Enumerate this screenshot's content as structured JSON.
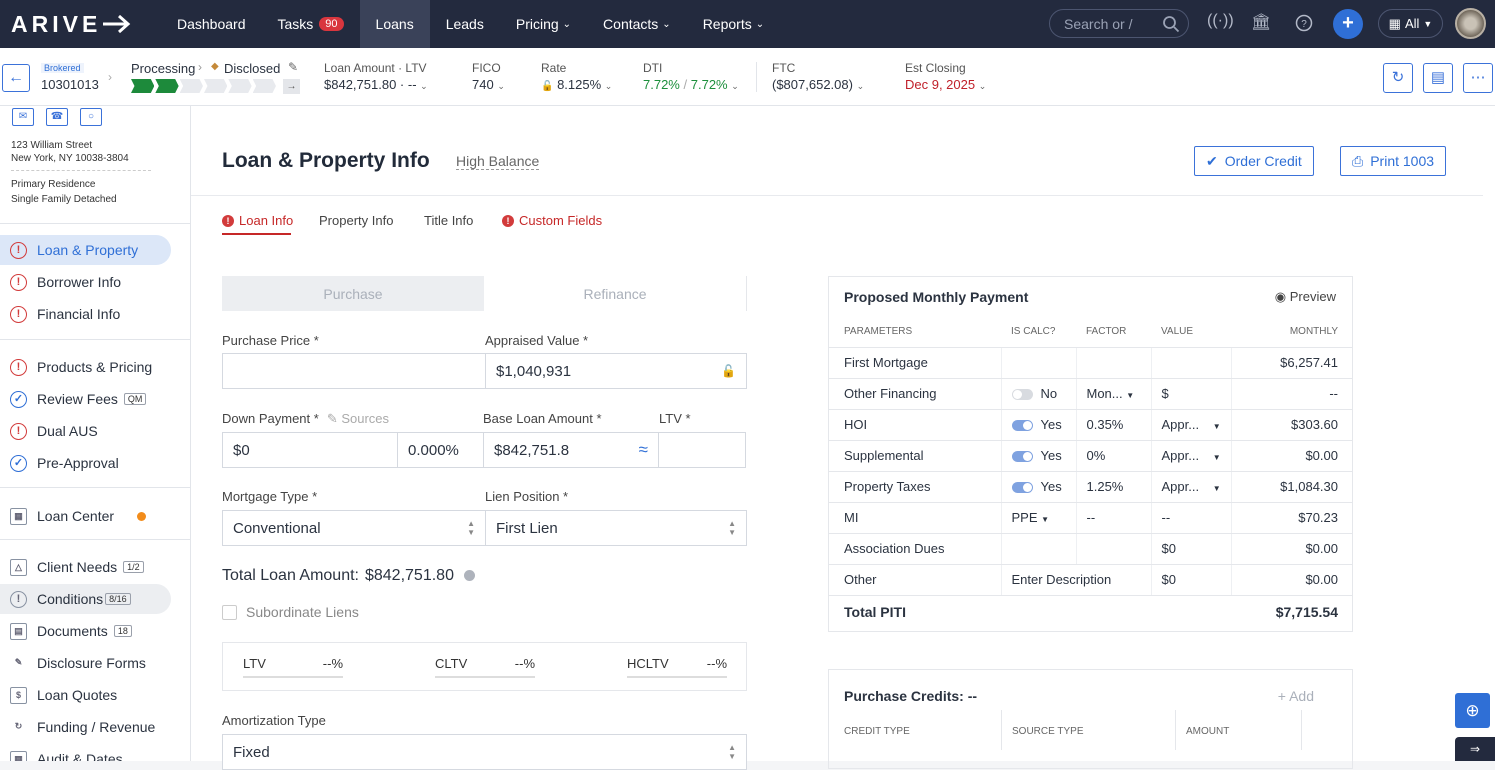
{
  "nav": {
    "logo": "ARIVE",
    "items": [
      {
        "label": "Dashboard"
      },
      {
        "label": "Tasks",
        "badge": "90"
      },
      {
        "label": "Loans"
      },
      {
        "label": "Leads"
      },
      {
        "label": "Pricing"
      },
      {
        "label": "Contacts"
      },
      {
        "label": "Reports"
      }
    ],
    "search_placeholder": "Search or /",
    "scope": "All"
  },
  "loanbar": {
    "channel": "Brokered",
    "loan_number": "10301013",
    "stage": "Processing",
    "status": "Disclosed",
    "loan_amount_label": "Loan Amount",
    "ltv_label": "LTV",
    "loan_amount": "$842,751.80",
    "ltv_value": "--",
    "fico_label": "FICO",
    "fico": "740",
    "rate_label": "Rate",
    "rate": "8.125%",
    "dti_label": "DTI",
    "dti_front": "7.72%",
    "dti_back": "7.72%",
    "ftc_label": "FTC",
    "ftc": "($807,652.08)",
    "closing_label": "Est Closing",
    "closing": "Dec 9, 2025"
  },
  "sidebar": {
    "address1": "123 William Street",
    "address2": "New York, NY 10038-3804",
    "occupancy": "Primary Residence",
    "property_type": "Single Family Detached",
    "items": [
      {
        "label": "Loan & Property"
      },
      {
        "label": "Borrower Info"
      },
      {
        "label": "Financial Info"
      },
      {
        "label": "Products & Pricing"
      },
      {
        "label": "Review Fees",
        "badge": "QM"
      },
      {
        "label": "Dual AUS"
      },
      {
        "label": "Pre-Approval"
      },
      {
        "label": "Loan Center"
      },
      {
        "label": "Client Needs",
        "badge": "1/2"
      },
      {
        "label": "Conditions",
        "badge": "8/16"
      },
      {
        "label": "Documents",
        "badge": "18"
      },
      {
        "label": "Disclosure Forms"
      },
      {
        "label": "Loan Quotes"
      },
      {
        "label": "Funding / Revenue"
      },
      {
        "label": "Audit & Dates"
      }
    ]
  },
  "main": {
    "title": "Loan & Property Info",
    "subtitle": "High Balance",
    "order_credit": "Order Credit",
    "print_1003": "Print 1003",
    "tabs": [
      {
        "label": "Loan Info"
      },
      {
        "label": "Property Info"
      },
      {
        "label": "Title Info"
      },
      {
        "label": "Custom Fields"
      }
    ],
    "purpose": {
      "purchase": "Purchase",
      "refinance": "Refinance"
    },
    "purchase_price_label": "Purchase Price *",
    "purchase_price": "",
    "appraised_label": "Appraised Value *",
    "appraised": "$1,040,931",
    "down_label": "Down Payment *",
    "sources": "Sources",
    "down_amount": "$0",
    "down_pct": "0.000%",
    "base_label": "Base Loan Amount *",
    "base": "$842,751.8",
    "ltv_label": "LTV *",
    "ltv": "",
    "mortgage_label": "Mortgage Type *",
    "mortgage": "Conventional",
    "lien_label": "Lien Position *",
    "lien": "First Lien",
    "total_loan_label": "Total Loan Amount:",
    "total_loan": "$842,751.80",
    "subordinate": "Subordinate Liens",
    "ratios": [
      {
        "label": "LTV",
        "value": "--%"
      },
      {
        "label": "CLTV",
        "value": "--%"
      },
      {
        "label": "HCLTV",
        "value": "--%"
      }
    ],
    "amort_label": "Amortization Type",
    "amort": "Fixed"
  },
  "payment": {
    "title": "Proposed Monthly Payment",
    "preview": "Preview",
    "headers": [
      "PARAMETERS",
      "IS CALC?",
      "FACTOR",
      "VALUE",
      "MONTHLY"
    ],
    "rows": [
      {
        "param": "First Mortgage",
        "calc": "",
        "factor": "",
        "value": "",
        "monthly": "$6,257.41"
      },
      {
        "param": "Other Financing",
        "calc": "No",
        "factor": "Mon...",
        "value": "$",
        "monthly": "--"
      },
      {
        "param": "HOI",
        "calc": "Yes",
        "factor": "0.35%",
        "value": "Appr...",
        "monthly": "$303.60"
      },
      {
        "param": "Supplemental",
        "calc": "Yes",
        "factor": "0%",
        "value": "Appr...",
        "monthly": "$0.00"
      },
      {
        "param": "Property Taxes",
        "calc": "Yes",
        "factor": "1.25%",
        "value": "Appr...",
        "monthly": "$1,084.30"
      },
      {
        "param": "MI",
        "calc": "PPE",
        "factor": "--",
        "value": "--",
        "monthly": "$70.23"
      },
      {
        "param": "Association Dues",
        "calc": "",
        "factor": "",
        "value": "$0",
        "monthly": "$0.00"
      },
      {
        "param": "Other",
        "calc": "Enter Description",
        "factor": "",
        "value": "$0",
        "monthly": "$0.00"
      }
    ],
    "total_label": "Total PITI",
    "total": "$7,715.54"
  },
  "credits": {
    "title": "Purchase Credits:",
    "value": "--",
    "add": "Add",
    "headers": [
      "CREDIT TYPE",
      "SOURCE TYPE",
      "AMOUNT"
    ]
  }
}
